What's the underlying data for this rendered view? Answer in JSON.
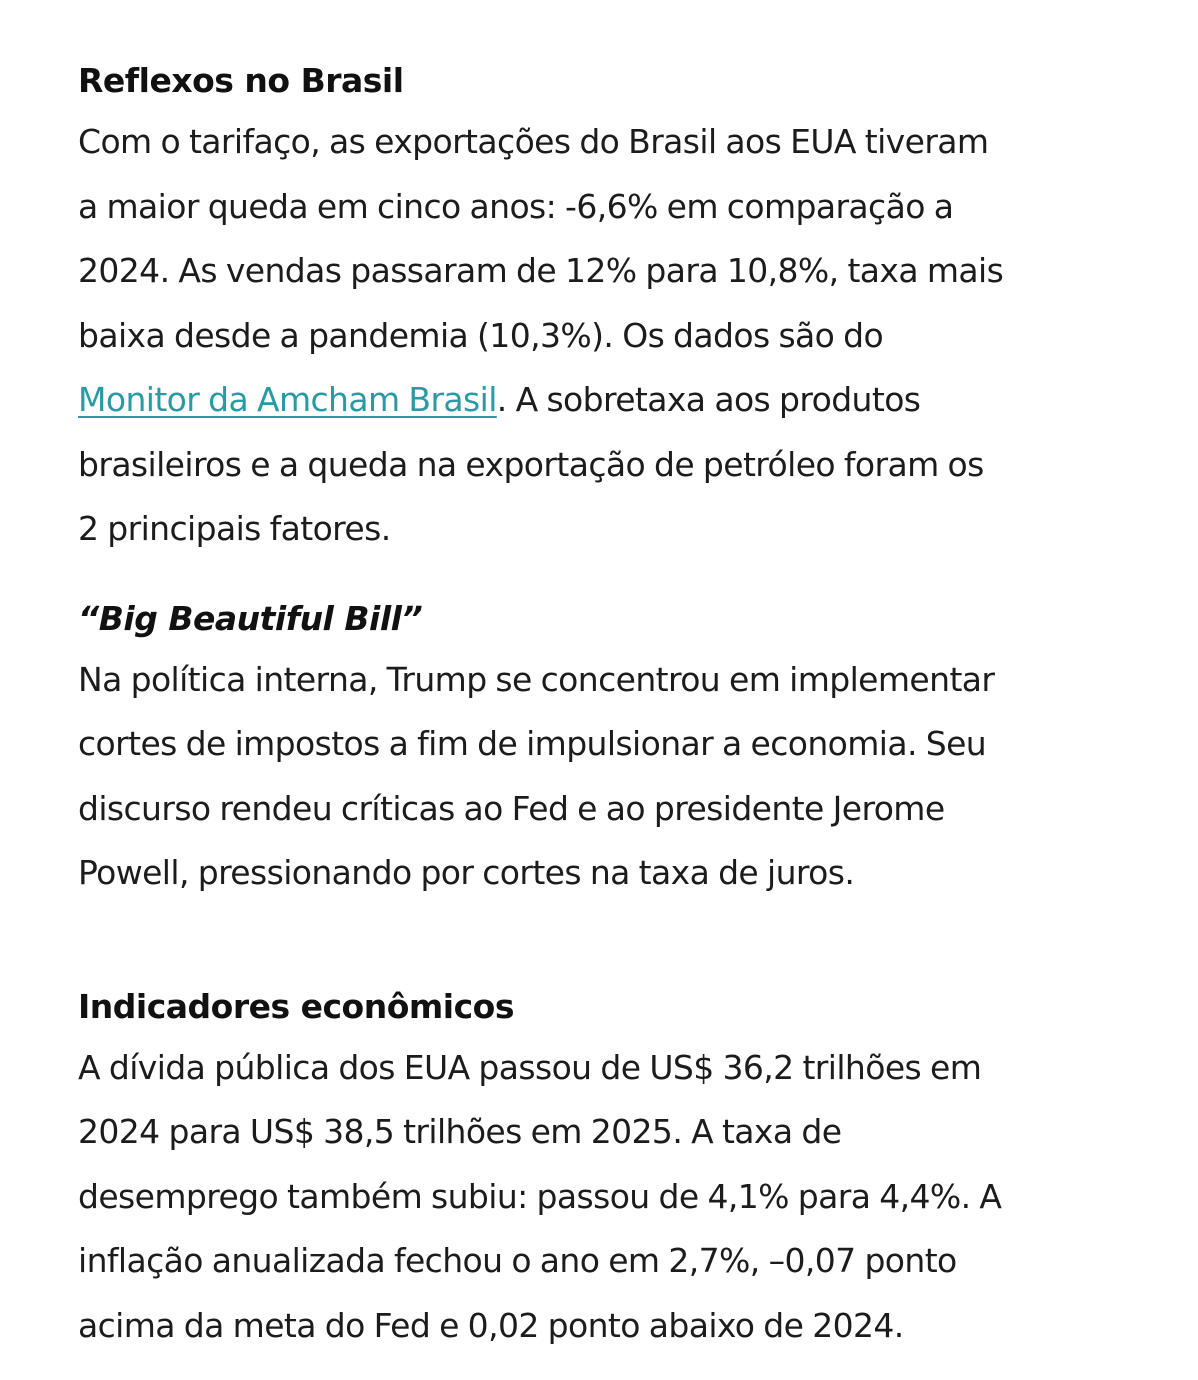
{
  "sections": [
    {
      "title": "Reflexos no Brasil",
      "lines": [
        "Com o tarifaço, as exportações do Brasil aos EUA tiveram",
        "a maior queda em cinco anos: -6,6% em comparação a",
        "2024. As vendas passaram de 12% para 10,8%, taxa mais",
        "baixa desde a pandemia (10,3%). Os dados são do"
      ],
      "link_text": "Monitor da Amcham Brasil",
      "after_link": ". A sobretaxa aos produtos",
      "lines_after": [
        "brasileiros e a queda na exportação de petróleo foram os",
        "2 principais fatores."
      ]
    },
    {
      "title": "“Big Beautiful Bill”",
      "lines": [
        "Na política interna, Trump se concentrou em implementar",
        "cortes de impostos a fim de impulsionar a economia. Seu",
        "discurso rendeu críticas ao Fed e ao presidente Jerome",
        "Powell, pressionando por cortes na taxa de juros."
      ]
    },
    {
      "title": "Indicadores econômicos",
      "lines": [
        "A dívida pública dos EUA passou de US$ 36,2 trilhões em",
        "2024 para US$ 38,5 trilhões em 2025. A taxa de",
        "desemprego também subiu: passou de 4,1% para 4,4%. A",
        "inflação anualizada fechou o ano em 2,7%, –0,07 ponto",
        "acima da meta do Fed e 0,02 ponto abaixo de 2024."
      ]
    }
  ],
  "colors": {
    "text": "#1c1c1c",
    "link": "#2a9aa6"
  }
}
